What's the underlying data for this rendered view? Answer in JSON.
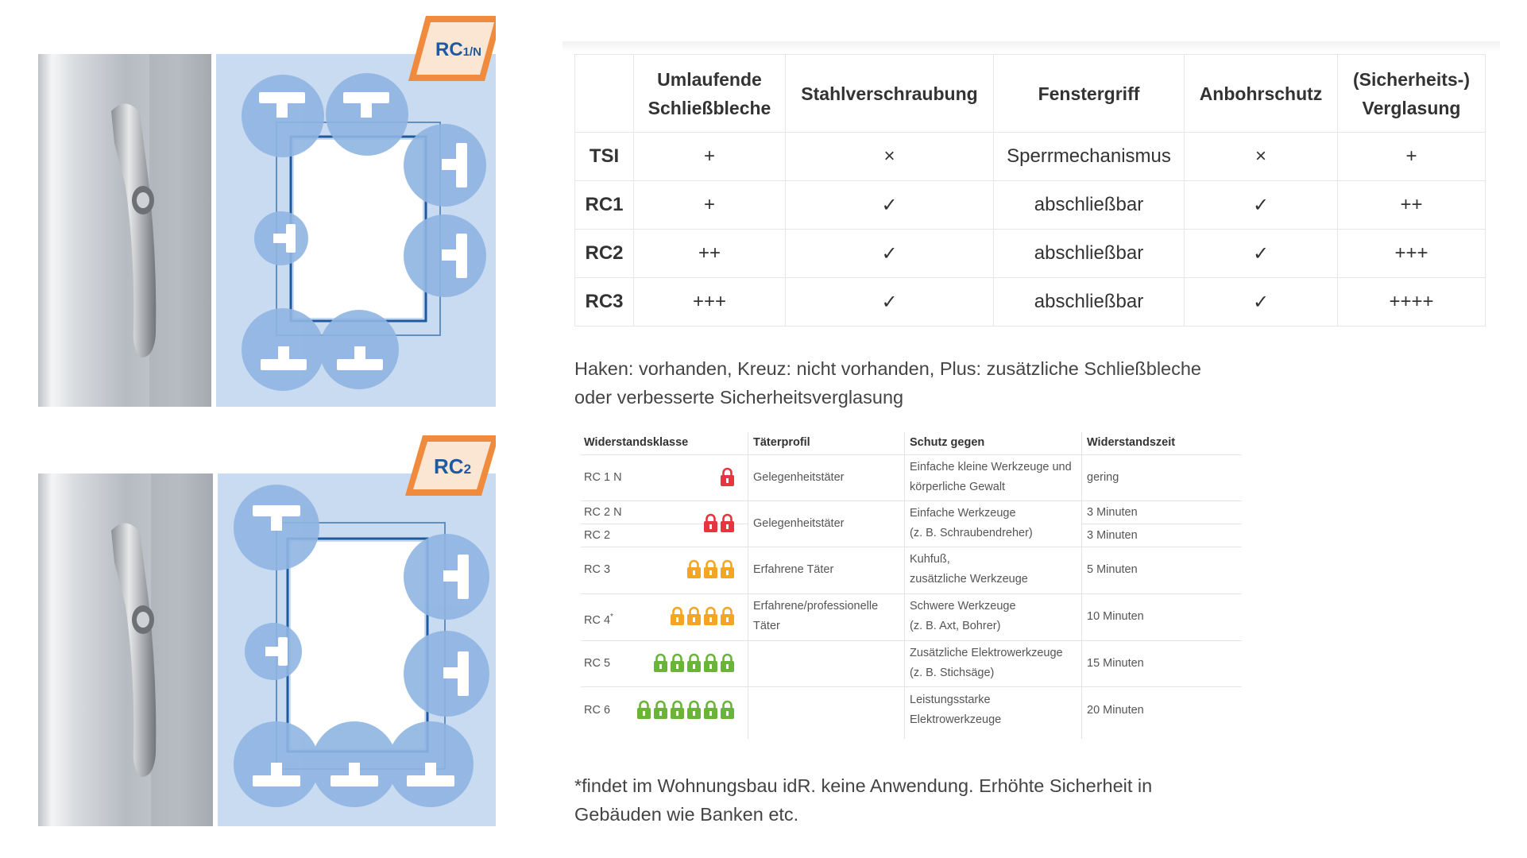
{
  "illustrations": {
    "top_badge": {
      "main": "RC",
      "sub": "1/N"
    },
    "bottom_badge": {
      "main": "RC",
      "sub": "2"
    },
    "colors": {
      "accent_orange": "#f08a3c",
      "panel_blue": "#c8dbf0",
      "circle_blue": "#8fb5e2",
      "frame_blue": "#1f5aa0"
    }
  },
  "comparison_table": {
    "headers": [
      "",
      "Umlaufende Schließbleche",
      "Stahlverschraubung",
      "Fenstergriff",
      "Anbohrschutz",
      "(Sicherheits-) Verglasung"
    ],
    "rows": [
      {
        "cls": "TSI",
        "cells": [
          "+",
          "×",
          "Sperrmechanismus",
          "×",
          "+"
        ]
      },
      {
        "cls": "RC1",
        "cells": [
          "+",
          "✓",
          "abschließbar",
          "✓",
          "++"
        ]
      },
      {
        "cls": "RC2",
        "cells": [
          "++",
          "✓",
          "abschließbar",
          "✓",
          "+++"
        ]
      },
      {
        "cls": "RC3",
        "cells": [
          "+++",
          "✓",
          "abschließbar",
          "✓",
          "++++"
        ]
      }
    ]
  },
  "legend_note": {
    "line1": "Haken: vorhanden, Kreuz: nicht vorhanden, Plus: zusätzliche Schließbleche",
    "line2": "oder verbesserte Sicherheitsverglasung"
  },
  "resistance_table": {
    "headers": {
      "klasse": "Widerstandsklasse",
      "taeter": "Täterprofil",
      "schutz": "Schutz gegen",
      "zeit": "Widerstandszeit"
    },
    "rows": [
      {
        "klasse": "RC 1 N",
        "taeter": "Gelegenheitstäter",
        "schutz1": "Einfache kleine Werkzeuge und",
        "schutz2": "körperliche Gewalt",
        "zeit": "gering",
        "locks": 1,
        "lock_color": "#e8343f"
      },
      {
        "klasse": "RC 2 N",
        "klasse2": "RC 2",
        "taeter": "Gelegenheitstäter",
        "schutz1": "Einfache Werkzeuge",
        "schutz2": "(z. B. Schraubendreher)",
        "zeit": "3 Minuten",
        "zeit2": "3 Minuten",
        "locks": 2,
        "lock_color": "#e8343f"
      },
      {
        "klasse": "RC 3",
        "taeter": "Erfahrene Täter",
        "schutz1": "Kuhfuß,",
        "schutz2": "zusätzliche Werkzeuge",
        "zeit": "5 Minuten",
        "locks": 3,
        "lock_color": "#f5a524"
      },
      {
        "klasse": "RC 4",
        "klasse_sup": "*",
        "taeter": "Erfahrene/professionelle",
        "taeter2": "Täter",
        "schutz1": "Schwere Werkzeuge",
        "schutz2": "(z. B. Axt, Bohrer)",
        "zeit": "10 Minuten",
        "locks": 4,
        "lock_color": "#f5a524"
      },
      {
        "klasse": "RC 5",
        "taeter": "",
        "schutz1": "Zusätzliche Elektrowerkzeuge",
        "schutz2": "(z. B. Stichsäge)",
        "zeit": "15 Minuten",
        "locks": 5,
        "lock_color": "#6bb43a"
      },
      {
        "klasse": "RC 6",
        "taeter": "",
        "schutz1": "Leistungsstarke",
        "schutz2": "Elektrowerkzeuge",
        "zeit": "20 Minuten",
        "locks": 6,
        "lock_color": "#6bb43a"
      }
    ]
  },
  "footnote": {
    "line1": "*findet im Wohnungsbau idR. keine Anwendung. Erhöhte Sicherheit in",
    "line2": "Gebäuden wie Banken etc."
  }
}
